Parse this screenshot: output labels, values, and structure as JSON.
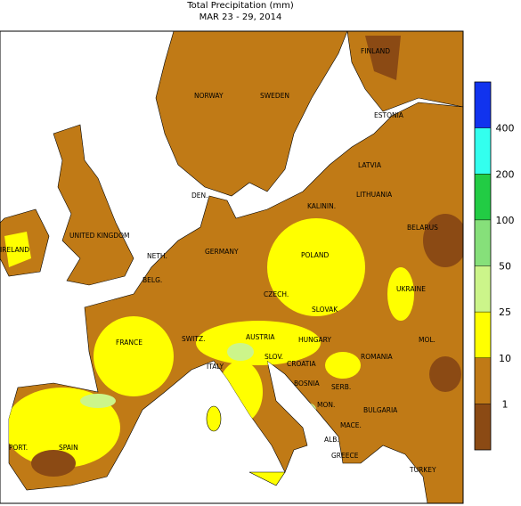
{
  "title": "Total Precipitation (mm)",
  "subtitle": "MAR 23 - 29, 2014",
  "legend": {
    "levels": [
      1,
      10,
      25,
      50,
      100,
      200,
      400
    ],
    "colors": [
      "#8b4a14",
      "#c07a16",
      "#ffff00",
      "#ccf58a",
      "#86e07a",
      "#22cc44",
      "#33ffee",
      "#1133ee"
    ]
  },
  "country_labels": [
    "FINLAND",
    "NORWAY",
    "SWEDEN",
    "ESTONIA",
    "LATVIA",
    "DEN.",
    "LITHUANIA",
    "KALININ.",
    "BELARUS",
    "UNITED KINGDOM",
    "IRELAND",
    "NETH.",
    "GERMANY",
    "POLAND",
    "BELG.",
    "CZECH.",
    "UKRAINE",
    "SLOVAK",
    "FRANCE",
    "SWITZ.",
    "AUSTRIA",
    "HUNGARY",
    "MOL.",
    "ITALY",
    "SLOV.",
    "ROMANIA",
    "CROATIA",
    "BOSNIA",
    "SERB.",
    "MON.",
    "BULGARIA",
    "MACE.",
    "PORT.",
    "SPAIN",
    "ALB.",
    "GREECE",
    "TURKEY"
  ]
}
